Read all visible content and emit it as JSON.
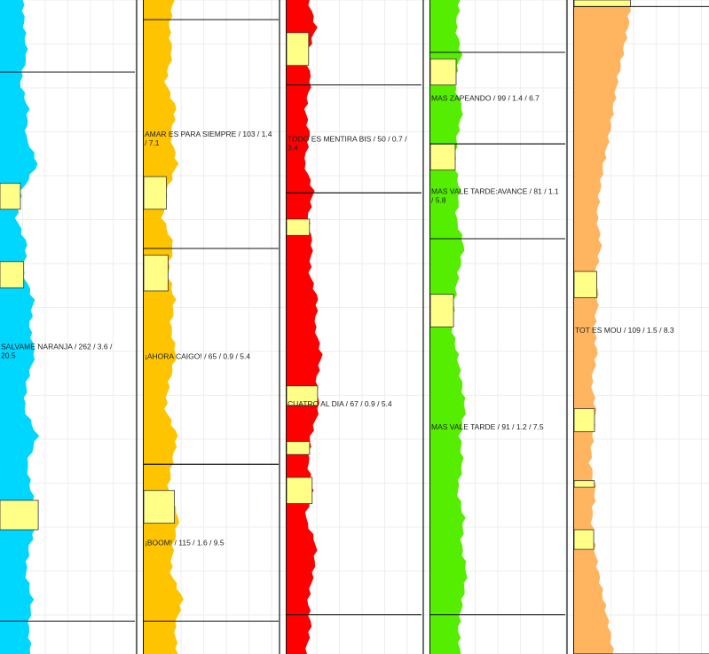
{
  "chart_data": {
    "type": "area",
    "grid": true,
    "columns": [
      {
        "name": "",
        "color": "#00d7ff",
        "highlight": "#ffff88",
        "profile": [
          0.13,
          0.14,
          0.16,
          0.11,
          0.17,
          0.15,
          0.24,
          0.12,
          0.08,
          0.16,
          0.13,
          0.21,
          0.18,
          0.22,
          0.16,
          0.14,
          0.24,
          0.16,
          0.19,
          0.25,
          0.18,
          0.15,
          0.2,
          0.17,
          0.19
        ],
        "highlights": [
          [
            0.28,
            0.32
          ],
          [
            0.4,
            0.44
          ],
          [
            0.765,
            0.81
          ]
        ],
        "blocks": [
          {
            "start": 0.11,
            "end": 0.95,
            "label": "SALVAME NARANJA / 262 / 3.6 / 20.5"
          }
        ]
      },
      {
        "name": "",
        "color": "#ffc400",
        "highlight": "#ffff88",
        "profile": [
          0.18,
          0.15,
          0.17,
          0.12,
          0.2,
          0.16,
          0.21,
          0.13,
          0.1,
          0.18,
          0.14,
          0.19,
          0.16,
          0.2,
          0.15,
          0.12,
          0.21,
          0.17,
          0.14,
          0.22,
          0.18,
          0.16,
          0.25,
          0.19,
          0.21
        ],
        "highlights": [
          [
            0.27,
            0.32
          ],
          [
            0.39,
            0.445
          ],
          [
            0.75,
            0.8
          ]
        ],
        "blocks": [
          {
            "start": 0.03,
            "end": 0.38,
            "label": "AMAR ES PARA SIEMPRE / 103 / 1.4 / 7.1"
          },
          {
            "start": 0.38,
            "end": 0.71,
            "label": "¡AHORA CAIGO! / 65 / 0.9 / 5.4"
          },
          {
            "start": 0.71,
            "end": 0.95,
            "label": "¡BOOM! / 115 / 1.6 / 9.5"
          }
        ]
      },
      {
        "name": "",
        "color": "#ff0000",
        "highlight": "#ffff88",
        "profile": [
          0.12,
          0.18,
          0.11,
          0.14,
          0.1,
          0.13,
          0.09,
          0.16,
          0.12,
          0.15,
          0.13,
          0.19,
          0.17,
          0.22,
          0.18,
          0.2,
          0.14,
          0.12,
          0.15,
          0.1,
          0.18,
          0.16,
          0.12,
          0.14,
          0.1
        ],
        "highlights": [
          [
            0.05,
            0.1
          ],
          [
            0.335,
            0.36
          ],
          [
            0.59,
            0.62
          ],
          [
            0.675,
            0.695
          ],
          [
            0.73,
            0.77
          ]
        ],
        "blocks": [
          {
            "start": 0.13,
            "end": 0.295,
            "label": "TODO ES MENTIRA BIS / 50 / 0.7 / 3.4"
          },
          {
            "start": 0.295,
            "end": 0.94,
            "label": "CUATRO AL DIA / 67 / 0.9 / 5.4"
          }
        ]
      },
      {
        "name": "",
        "color": "#55ee00",
        "highlight": "#ffff88",
        "profile": [
          0.18,
          0.15,
          0.19,
          0.13,
          0.2,
          0.16,
          0.14,
          0.18,
          0.15,
          0.21,
          0.17,
          0.14,
          0.12,
          0.16,
          0.19,
          0.22,
          0.18,
          0.2,
          0.16,
          0.21,
          0.19,
          0.23,
          0.2,
          0.17,
          0.18
        ],
        "highlights": [
          [
            0.09,
            0.13
          ],
          [
            0.22,
            0.26
          ],
          [
            0.45,
            0.5
          ]
        ],
        "blocks": [
          {
            "start": 0.08,
            "end": 0.22,
            "label": "MAS ZAPEANDO / 99 / 1.4 / 6.7"
          },
          {
            "start": 0.22,
            "end": 0.365,
            "label": "MAS VALE TARDE:AVANCE / 81 / 1.1 / 5.8"
          },
          {
            "start": 0.365,
            "end": 0.94,
            "label": "MAS VALE TARDE / 91 / 1.2 / 7.5"
          }
        ]
      },
      {
        "name": "",
        "color": "#ffb560",
        "highlight": "#ffff88",
        "profile": [
          0.38,
          0.36,
          0.32,
          0.28,
          0.25,
          0.22,
          0.18,
          0.15,
          0.13,
          0.16,
          0.12,
          0.14,
          0.11,
          0.13,
          0.09,
          0.12,
          0.1,
          0.08,
          0.12,
          0.09,
          0.11,
          0.14,
          0.18,
          0.22,
          0.25
        ],
        "highlights": [
          [
            0.0,
            0.01
          ],
          [
            0.415,
            0.455
          ],
          [
            0.625,
            0.66
          ],
          [
            0.735,
            0.745
          ],
          [
            0.81,
            0.84
          ]
        ],
        "blocks": [
          {
            "start": 0.01,
            "end": 1.0,
            "label": "TOT ES MOU / 109 / 1.5 / 8.3"
          }
        ]
      }
    ]
  }
}
